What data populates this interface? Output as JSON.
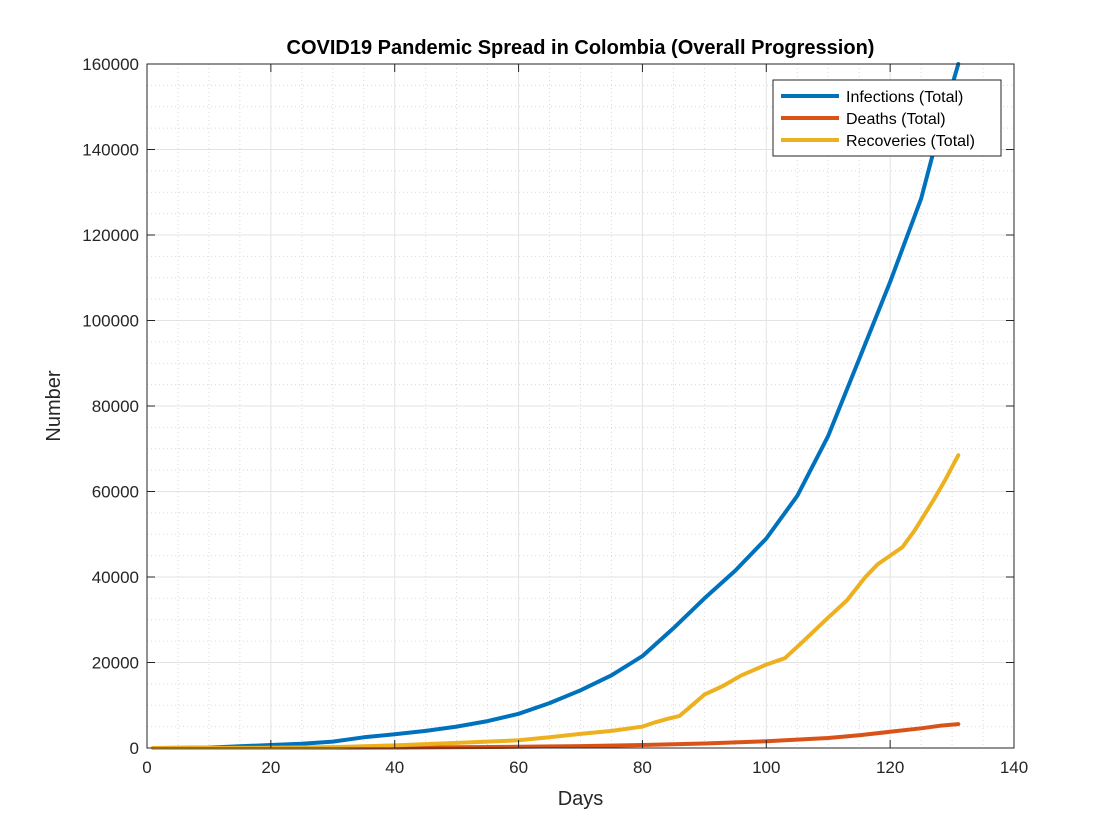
{
  "chart_data": {
    "type": "line",
    "title": "COVID19 Pandemic Spread in Colombia (Overall Progression)",
    "xlabel": "Days",
    "ylabel": "Number",
    "xlim": [
      0,
      140
    ],
    "ylim": [
      0,
      160000
    ],
    "xticks": [
      0,
      20,
      40,
      60,
      80,
      100,
      120,
      140
    ],
    "yticks": [
      0,
      20000,
      40000,
      60000,
      80000,
      100000,
      120000,
      140000,
      160000
    ],
    "grid": true,
    "minor_grid": true,
    "legend_position": "top-right",
    "series": [
      {
        "name": "Infections (Total)",
        "color": "#0072BD",
        "x": [
          1,
          10,
          15,
          20,
          25,
          30,
          35,
          40,
          45,
          50,
          55,
          60,
          65,
          70,
          75,
          80,
          85,
          90,
          95,
          100,
          105,
          110,
          115,
          120,
          125,
          128,
          131
        ],
        "y": [
          0,
          100,
          400,
          700,
          1000,
          1500,
          2500,
          3200,
          4000,
          5000,
          6300,
          8000,
          10500,
          13500,
          17000,
          21500,
          28000,
          35000,
          41500,
          49000,
          59000,
          73000,
          91000,
          109000,
          128500,
          145000,
          160000
        ]
      },
      {
        "name": "Deaths (Total)",
        "color": "#D95319",
        "x": [
          1,
          20,
          40,
          60,
          70,
          80,
          90,
          100,
          110,
          115,
          120,
          125,
          128,
          131
        ],
        "y": [
          0,
          20,
          100,
          280,
          450,
          700,
          1050,
          1600,
          2350,
          3000,
          3800,
          4600,
          5200,
          5600
        ]
      },
      {
        "name": "Recoveries (Total)",
        "color": "#EDB120",
        "x": [
          1,
          20,
          30,
          40,
          50,
          60,
          65,
          70,
          75,
          80,
          82,
          84,
          86,
          88,
          90,
          93,
          96,
          100,
          103,
          106,
          110,
          113,
          116,
          118,
          122,
          124,
          127,
          129,
          131
        ],
        "y": [
          0,
          50,
          200,
          600,
          1200,
          1800,
          2500,
          3300,
          4000,
          5000,
          6000,
          6800,
          7500,
          10000,
          12500,
          14500,
          17000,
          19500,
          21000,
          25000,
          30500,
          34500,
          40000,
          43000,
          47000,
          51000,
          58000,
          63000,
          68500
        ]
      }
    ]
  }
}
